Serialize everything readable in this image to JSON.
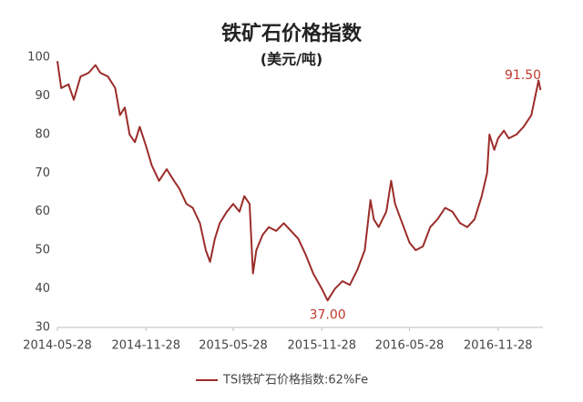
{
  "chart_data": {
    "type": "line",
    "title": "铁矿石价格指数",
    "subtitle": "(美元/吨)",
    "x": [
      "2014-05-28",
      "2014-06-05",
      "2014-06-20",
      "2014-07-01",
      "2014-07-15",
      "2014-08-01",
      "2014-08-15",
      "2014-08-25",
      "2014-09-10",
      "2014-09-25",
      "2014-10-05",
      "2014-10-15",
      "2014-10-25",
      "2014-11-05",
      "2014-11-15",
      "2014-11-28",
      "2014-12-10",
      "2014-12-25",
      "2015-01-10",
      "2015-01-25",
      "2015-02-05",
      "2015-02-20",
      "2015-03-05",
      "2015-03-20",
      "2015-04-01",
      "2015-04-10",
      "2015-04-20",
      "2015-04-30",
      "2015-05-15",
      "2015-05-28",
      "2015-06-10",
      "2015-06-20",
      "2015-07-01",
      "2015-07-08",
      "2015-07-15",
      "2015-07-28",
      "2015-08-10",
      "2015-08-25",
      "2015-09-10",
      "2015-09-25",
      "2015-10-10",
      "2015-10-25",
      "2015-11-10",
      "2015-11-28",
      "2015-12-10",
      "2015-12-25",
      "2016-01-10",
      "2016-01-25",
      "2016-02-10",
      "2016-02-25",
      "2016-03-08",
      "2016-03-15",
      "2016-03-25",
      "2016-04-10",
      "2016-04-20",
      "2016-04-28",
      "2016-05-10",
      "2016-05-28",
      "2016-06-10",
      "2016-06-25",
      "2016-07-10",
      "2016-07-25",
      "2016-08-10",
      "2016-08-25",
      "2016-09-10",
      "2016-09-25",
      "2016-10-10",
      "2016-10-25",
      "2016-11-05",
      "2016-11-10",
      "2016-11-20",
      "2016-11-28",
      "2016-12-10",
      "2016-12-20",
      "2017-01-05",
      "2017-01-20",
      "2017-02-05",
      "2017-02-15",
      "2017-02-20",
      "2017-02-24"
    ],
    "series": [
      {
        "name": "TSI铁矿石价格指数:62%Fe",
        "color": "#9b2d2a",
        "values": [
          99,
          92,
          93,
          89,
          95,
          96,
          98,
          96,
          95,
          92,
          85,
          87,
          80,
          78,
          82,
          77,
          72,
          68,
          71,
          68,
          66,
          62,
          61,
          57,
          50,
          47,
          53,
          57,
          60,
          62,
          60,
          64,
          62,
          44,
          50,
          54,
          56,
          55,
          57,
          55,
          53,
          49,
          44,
          40,
          37,
          40,
          42,
          41,
          45,
          50,
          63,
          58,
          56,
          60,
          68,
          62,
          58,
          52,
          50,
          51,
          56,
          58,
          61,
          60,
          57,
          56,
          58,
          64,
          70,
          80,
          76,
          79,
          81,
          79,
          80,
          82,
          85,
          91,
          94,
          91.5
        ]
      }
    ],
    "annotations": [
      {
        "x": "2015-12-10",
        "value": 37,
        "label": "37.00"
      },
      {
        "x": "2017-02-24",
        "value": 91.5,
        "label": "91.50"
      }
    ],
    "xlim": [
      "2014-05-28",
      "2017-03-01"
    ],
    "xticks": [
      "2014-05-28",
      "2014-11-28",
      "2015-05-28",
      "2015-11-28",
      "2016-05-28",
      "2016-11-28"
    ],
    "ylim": [
      30,
      100
    ],
    "yticks": [
      30,
      40,
      50,
      60,
      70,
      80,
      90,
      100
    ],
    "grid": false
  }
}
